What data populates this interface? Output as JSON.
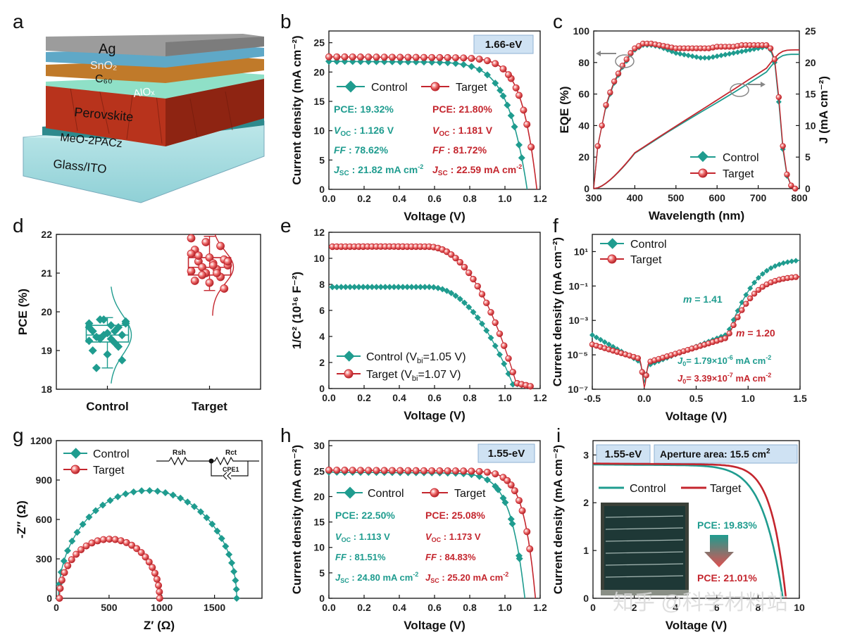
{
  "colors": {
    "teal": "#1f9c8f",
    "red": "#c4262e",
    "box_fill": "#cfe2f3",
    "box_stroke": "#8fb1d3"
  },
  "panels": {
    "a": {
      "letter": "a",
      "layers": [
        "Ag",
        "SnO₂",
        "C₆₀",
        "AlOₓ",
        "Perovskite",
        "MeO-2PACz",
        "Glass/ITO"
      ]
    },
    "b": {
      "letter": "b",
      "badge": "1.66-eV",
      "legend": [
        "Control",
        "Target"
      ],
      "control": {
        "pce": "PCE: 19.32%",
        "voc_lab": "V",
        "voc_sub": "OC",
        "voc": " : 1.126 V",
        "ff_lab": "FF",
        "ff": " : 78.62%",
        "jsc_lab": "J",
        "jsc_sub": "SC",
        "jsc": " : 21.82 mA cm",
        "jsc_sup": "-2"
      },
      "target": {
        "pce": "PCE: 21.80%",
        "voc_lab": "V",
        "voc_sub": "OC",
        "voc": " : 1.181 V",
        "ff_lab": "FF",
        "ff": " : 81.72%",
        "jsc_lab": "J",
        "jsc_sub": "SC",
        "jsc": " : 22.59 mA cm",
        "jsc_sup": "-2"
      }
    },
    "c": {
      "letter": "c",
      "legend": [
        "Control",
        "Target"
      ]
    },
    "d": {
      "letter": "d",
      "categories": [
        "Control",
        "Target"
      ]
    },
    "e": {
      "letter": "e",
      "legend": [
        "Control (V",
        "bi",
        "=1.05 V)",
        "Target (V",
        "bi",
        "=1.07 V)"
      ]
    },
    "f": {
      "letter": "f",
      "legend": [
        "Control",
        "Target"
      ],
      "m_control": "m",
      "m_control_val": " = 1.41",
      "m_target": "m",
      "m_target_val": " = 1.20",
      "j0_control": "J",
      "j0_control_sub": "0",
      "j0_control_val": "= 1.79×10",
      "j0_control_exp": "-6",
      "j0_control_unit": " mA cm",
      "j0_control_unit_exp": "-2",
      "j0_target": "J",
      "j0_target_sub": "0",
      "j0_target_val": "= 3.39×10",
      "j0_target_exp": "-7",
      "j0_target_unit": " mA cm",
      "j0_target_unit_exp": "-2"
    },
    "g": {
      "letter": "g",
      "legend": [
        "Control",
        "Target"
      ],
      "circuit": [
        "Rsh",
        "Rct",
        "CPE1"
      ]
    },
    "h": {
      "letter": "h",
      "badge": "1.55-eV",
      "legend": [
        "Control",
        "Target"
      ],
      "control": {
        "pce": "PCE: 22.50%",
        "voc_lab": "V",
        "voc_sub": "OC",
        "voc": " : 1.113 V",
        "ff_lab": "FF",
        "ff": " : 81.51%",
        "jsc_lab": "J",
        "jsc_sub": "SC",
        "jsc": " : 24.80 mA cm",
        "jsc_sup": "-2"
      },
      "target": {
        "pce": "PCE: 25.08%",
        "voc_lab": "V",
        "voc_sub": "OC",
        "voc": " : 1.173 V",
        "ff_lab": "FF",
        "ff": " : 84.83%",
        "jsc_lab": "J",
        "jsc_sub": "SC",
        "jsc": " : 25.20 mA cm",
        "jsc_sup": "-2"
      }
    },
    "i": {
      "letter": "i",
      "badge1": "1.55-eV",
      "badge2": "Aperture area: 15.5 cm",
      "badge2_sup": "2",
      "legend": [
        "Control",
        "Target"
      ],
      "pce_control": "PCE: 19.83%",
      "pce_target": "PCE: 21.01%"
    },
    "watermark": "知乎 @科学材料站"
  },
  "chart_data": [
    {
      "id": "b",
      "type": "line",
      "title": "",
      "xlabel": "Voltage (V)",
      "ylabel": "Current density (mA cm⁻²)",
      "xlim": [
        0,
        1.2
      ],
      "ylim": [
        0,
        27
      ],
      "xticks": [
        "0.0",
        "0.2",
        "0.4",
        "0.6",
        "0.8",
        "1.0",
        "1.2"
      ],
      "yticks": [
        "0",
        "5",
        "10",
        "15",
        "20",
        "25"
      ],
      "series": [
        {
          "name": "Control",
          "jsc": 21.82,
          "voc": 1.126,
          "ff": 0.7862,
          "marker": "diamond"
        },
        {
          "name": "Target",
          "jsc": 22.59,
          "voc": 1.181,
          "ff": 0.8172,
          "marker": "circle"
        }
      ]
    },
    {
      "id": "c",
      "type": "line",
      "xlabel": "Wavelength (nm)",
      "ylabel": "EQE (%)",
      "ylabel_right": "J (mA cm⁻²)",
      "xlim": [
        300,
        800
      ],
      "ylim": [
        0,
        100
      ],
      "ylim_right": [
        0,
        25
      ],
      "xticks": [
        "300",
        "400",
        "500",
        "600",
        "700",
        "800"
      ],
      "yticks": [
        "0",
        "20",
        "40",
        "60",
        "80",
        "100"
      ],
      "yticks_right": [
        "0",
        "5",
        "10",
        "15",
        "20",
        "25"
      ],
      "x": [
        300,
        310,
        320,
        330,
        340,
        350,
        360,
        370,
        380,
        390,
        400,
        420,
        440,
        460,
        480,
        500,
        520,
        540,
        560,
        580,
        600,
        620,
        640,
        660,
        680,
        700,
        720,
        730,
        740,
        750,
        760,
        770,
        780,
        790
      ],
      "series": [
        {
          "name": "Control",
          "values": [
            0,
            27,
            40,
            52,
            60,
            67,
            72,
            77,
            81,
            85,
            88,
            91,
            91,
            90,
            88,
            86,
            85,
            84,
            83,
            83,
            84,
            85,
            86,
            87,
            88,
            89,
            90,
            88,
            80,
            55,
            25,
            8,
            2,
            0
          ],
          "integrated_jsc_end": 21.3
        },
        {
          "name": "Target",
          "values": [
            0,
            27,
            40,
            53,
            61,
            68,
            73,
            78,
            82,
            86,
            89,
            92,
            92,
            91,
            90,
            89,
            89,
            89,
            89,
            89,
            90,
            90,
            90,
            91,
            91,
            91,
            91,
            89,
            82,
            58,
            27,
            9,
            2,
            0
          ],
          "integrated_jsc_end": 22.0
        }
      ]
    },
    {
      "id": "d",
      "type": "scatter",
      "ylabel": "PCE (%)",
      "ylim": [
        18,
        22
      ],
      "yticks": [
        "18",
        "19",
        "20",
        "21",
        "22"
      ],
      "categories": [
        "Control",
        "Target"
      ],
      "series": [
        {
          "name": "Control",
          "values": [
            19.7,
            19.8,
            19.6,
            19.5,
            19.45,
            19.4,
            19.35,
            19.3,
            19.7,
            19.8,
            19.2,
            19.6,
            19.4,
            19.1,
            19.0,
            18.9,
            18.75,
            18.55,
            19.65,
            19.75,
            19.3,
            19.5,
            19.25
          ],
          "box": [
            19.22,
            19.4,
            19.65
          ],
          "whisker": [
            18.55,
            19.85
          ]
        },
        {
          "name": "Target",
          "values": [
            21.9,
            21.8,
            21.7,
            21.6,
            21.4,
            21.35,
            21.3,
            21.25,
            21.2,
            21.15,
            21.1,
            21.05,
            21.0,
            20.9,
            20.8,
            20.75,
            20.6,
            21.45,
            21.2,
            21.3,
            20.95,
            21.0,
            21.5
          ],
          "box": [
            20.95,
            21.15,
            21.4
          ],
          "whisker": [
            20.55,
            21.95
          ]
        }
      ]
    },
    {
      "id": "e",
      "type": "line",
      "xlabel": "Voltage (V)",
      "ylabel": "1/C² (10¹⁶ F⁻²)",
      "xlim": [
        0,
        1.2
      ],
      "ylim": [
        0,
        12
      ],
      "xticks": [
        "0.0",
        "0.2",
        "0.4",
        "0.6",
        "0.8",
        "1.0",
        "1.2"
      ],
      "yticks": [
        "0",
        "2",
        "4",
        "6",
        "8",
        "10",
        "12"
      ],
      "series": [
        {
          "name": "Control",
          "plateau": 7.8,
          "vbi": 1.05,
          "marker": "diamond"
        },
        {
          "name": "Target",
          "plateau": 10.9,
          "vbi": 1.07,
          "marker": "circle"
        }
      ]
    },
    {
      "id": "f",
      "type": "line",
      "xlabel": "Voltage (V)",
      "ylabel": "Current density (mA cm⁻²)",
      "yscale": "log",
      "xlim": [
        -0.5,
        1.5
      ],
      "ylim_log10": [
        -7,
        2
      ],
      "xticks": [
        "-0.5",
        "0.0",
        "0.5",
        "1.0",
        "1.5"
      ],
      "yticks": [
        "10⁻⁷",
        "10⁻⁵",
        "10⁻³",
        "10⁻¹",
        "10¹"
      ],
      "series": [
        {
          "name": "Control",
          "ideality_factor": 1.41,
          "j0": 1.79e-06
        },
        {
          "name": "Target",
          "ideality_factor": 1.2,
          "j0": 3.39e-07
        }
      ]
    },
    {
      "id": "g",
      "type": "scatter",
      "xlabel": "Z′ (Ω)",
      "ylabel": "-Z″ (Ω)",
      "xlim": [
        0,
        1950
      ],
      "ylim": [
        0,
        1200
      ],
      "xticks": [
        "0",
        "500",
        "1000",
        "1500"
      ],
      "yticks": [
        "0",
        "300",
        "600",
        "900",
        "1200"
      ],
      "series": [
        {
          "name": "Control",
          "z_start": 20,
          "z_end": 1710,
          "peak": 820
        },
        {
          "name": "Target",
          "z_start": 30,
          "z_end": 980,
          "peak": 450
        }
      ]
    },
    {
      "id": "h",
      "type": "line",
      "xlabel": "Voltage (V)",
      "ylabel": "Current density (mA cm⁻²)",
      "xlim": [
        0,
        1.2
      ],
      "ylim": [
        0,
        31
      ],
      "xticks": [
        "0.0",
        "0.2",
        "0.4",
        "0.6",
        "0.8",
        "1.0",
        "1.2"
      ],
      "yticks": [
        "0",
        "5",
        "10",
        "15",
        "20",
        "25",
        "30"
      ],
      "series": [
        {
          "name": "Control",
          "jsc": 24.8,
          "voc": 1.113,
          "ff": 0.8151,
          "marker": "diamond"
        },
        {
          "name": "Target",
          "jsc": 25.2,
          "voc": 1.173,
          "ff": 0.8483,
          "marker": "circle"
        }
      ]
    },
    {
      "id": "i",
      "type": "line",
      "xlabel": "Voltage (V)",
      "ylabel": "Current density (mA cm⁻²)",
      "xlim": [
        0,
        10
      ],
      "ylim": [
        0,
        3.3
      ],
      "xticks": [
        "0",
        "2",
        "4",
        "6",
        "8",
        "10"
      ],
      "yticks": [
        "0",
        "1",
        "2",
        "3"
      ],
      "series": [
        {
          "name": "Control",
          "jsc": 2.8,
          "voc": 9.2,
          "ff": 0.78
        },
        {
          "name": "Target",
          "jsc": 2.82,
          "voc": 9.35,
          "ff": 0.81
        }
      ]
    }
  ]
}
